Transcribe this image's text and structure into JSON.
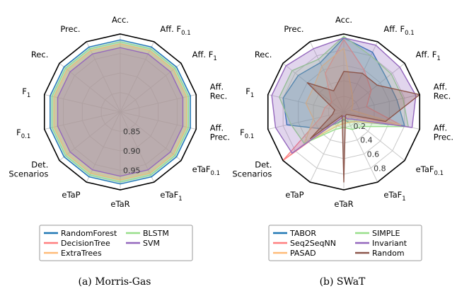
{
  "axes": [
    "Acc.",
    "Aff. F_{0.1}",
    "Aff. F_{1}",
    "Aff.|Rec.",
    "Aff.|Prec.",
    "eTaF_{0.1}",
    "eTaF_{1}",
    "eTaR",
    "eTaP",
    "Det.|Scenarios",
    "F_{0.1}",
    "F_{1}",
    "Rec.",
    "Prec."
  ],
  "chart_data": [
    {
      "type": "radar",
      "caption": "(a)  Morris-Gas",
      "rlim": [
        0.8,
        1.0
      ],
      "tick_values": [
        0.85,
        0.9,
        0.95
      ],
      "tick_labels": [
        "0.85",
        "0.90",
        "0.95"
      ],
      "tick_axis_index": 7,
      "legend": {
        "columns": 2,
        "placement": "bottom"
      },
      "series": [
        {
          "name": "RandomForest",
          "color": "#1f77b4",
          "values": [
            0.985,
            0.985,
            0.985,
            0.985,
            0.985,
            0.985,
            0.985,
            0.985,
            0.985,
            0.985,
            0.985,
            0.985,
            0.985,
            0.985
          ]
        },
        {
          "name": "DecisionTree",
          "color": "#ff7f7f",
          "values": [
            0.975,
            0.975,
            0.975,
            0.975,
            0.975,
            0.975,
            0.975,
            0.975,
            0.975,
            0.975,
            0.975,
            0.975,
            0.975,
            0.975
          ]
        },
        {
          "name": "ExtraTrees",
          "color": "#ffbb78",
          "values": [
            0.975,
            0.975,
            0.975,
            0.975,
            0.975,
            0.975,
            0.975,
            0.975,
            0.975,
            0.975,
            0.975,
            0.975,
            0.975,
            0.975
          ]
        },
        {
          "name": "BLSTM",
          "color": "#98df8a",
          "values": [
            0.98,
            0.98,
            0.98,
            0.98,
            0.98,
            0.98,
            0.98,
            0.98,
            0.98,
            0.98,
            0.98,
            0.98,
            0.98,
            0.98
          ]
        },
        {
          "name": "SVM",
          "color": "#9467bd",
          "values": [
            0.965,
            0.965,
            0.965,
            0.965,
            0.965,
            0.965,
            0.965,
            0.965,
            0.965,
            0.965,
            0.965,
            0.965,
            0.965,
            0.965
          ]
        }
      ]
    },
    {
      "type": "radar",
      "caption": "(b)  SWaT",
      "rlim": [
        0.0,
        1.0
      ],
      "tick_values": [
        0.2,
        0.4,
        0.6,
        0.8
      ],
      "tick_labels": [
        "0.2",
        "0.4",
        "0.6",
        "0.8"
      ],
      "tick_axis_index": 6,
      "legend": {
        "columns": 2,
        "placement": "bottom"
      },
      "series": [
        {
          "name": "TABOR",
          "color": "#1f77b4",
          "values": [
            0.95,
            0.85,
            0.7,
            0.7,
            0.8,
            0.2,
            0.15,
            0.1,
            0.15,
            0.35,
            0.75,
            0.8,
            0.75,
            0.7
          ]
        },
        {
          "name": "Seq2SeqNN",
          "color": "#ff7f7f",
          "values": [
            0.93,
            0.6,
            0.45,
            0.3,
            0.75,
            0.1,
            0.1,
            0.05,
            0.1,
            1.0,
            0.3,
            0.25,
            0.2,
            0.55
          ]
        },
        {
          "name": "PASAD",
          "color": "#ffbb78",
          "values": [
            0.82,
            0.25,
            0.15,
            0.1,
            0.75,
            0.2,
            0.15,
            0.15,
            0.2,
            0.65,
            0.4,
            0.5,
            0.5,
            0.65
          ]
        },
        {
          "name": "SIMPLE",
          "color": "#98df8a",
          "values": [
            0.97,
            0.8,
            0.78,
            0.78,
            0.85,
            0.3,
            0.25,
            0.2,
            0.25,
            0.65,
            0.7,
            0.85,
            0.85,
            0.75
          ]
        },
        {
          "name": "Invariant",
          "color": "#9467bd",
          "values": [
            0.95,
            0.95,
            0.92,
            0.95,
            0.9,
            0.15,
            0.1,
            0.05,
            0.1,
            0.85,
            0.9,
            0.95,
            0.95,
            0.9
          ]
        },
        {
          "name": "Random",
          "color": "#8c564b",
          "values": [
            0.52,
            0.55,
            0.55,
            1.0,
            0.55,
            0.05,
            0.05,
            0.9,
            0.05,
            0.55,
            0.15,
            0.12,
            0.6,
            0.3
          ]
        }
      ]
    }
  ]
}
